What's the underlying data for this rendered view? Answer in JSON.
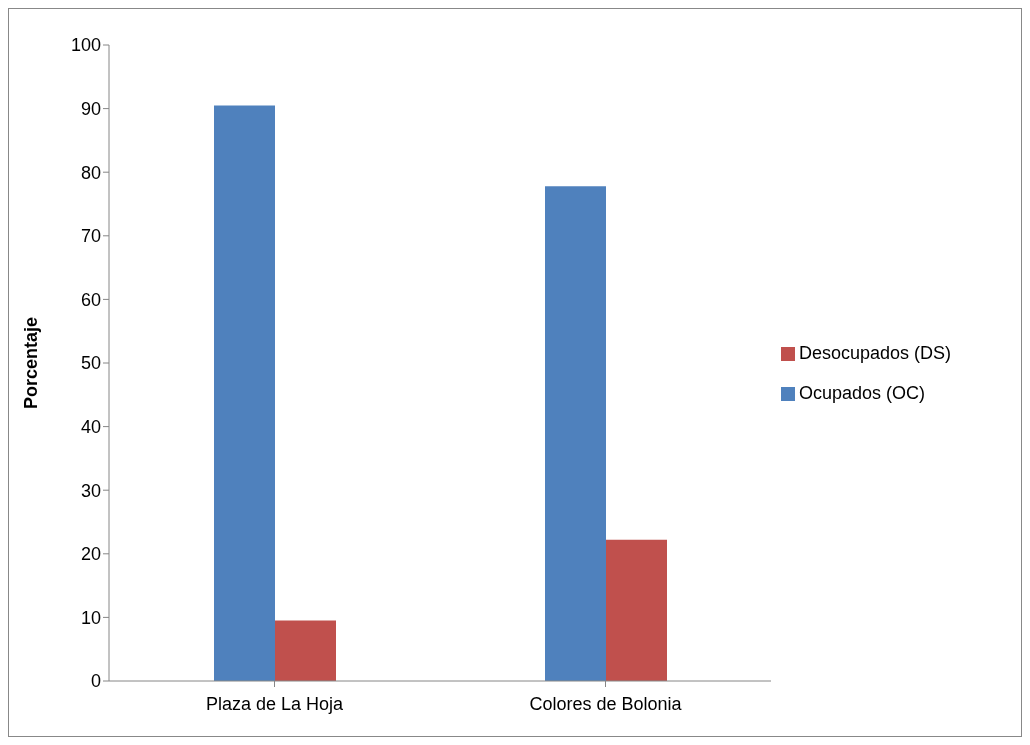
{
  "chart_data": {
    "type": "bar",
    "categories": [
      "Plaza de La Hoja",
      "Colores de Bolonia"
    ],
    "ylabel": "Porcentaje",
    "ylim": [
      0,
      100
    ],
    "yticks": [
      0,
      10,
      20,
      30,
      40,
      50,
      60,
      70,
      80,
      90,
      100
    ],
    "grid": false,
    "legend": "right",
    "series": [
      {
        "name": "Ocupados (OC)",
        "color": "#4f81bd",
        "values": [
          90.5,
          77.8
        ]
      },
      {
        "name": "Desocupados (DS)",
        "color": "#c0504d",
        "values": [
          9.5,
          22.2
        ]
      }
    ]
  }
}
